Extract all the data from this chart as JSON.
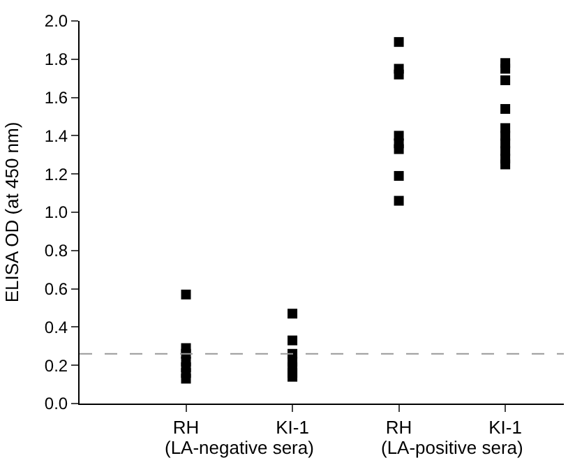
{
  "chart_data": {
    "type": "scatter",
    "ylabel": "ELISA OD (at 450 nm)",
    "categories": [
      "RH",
      "KI-1",
      "RH",
      "KI-1"
    ],
    "series": [
      {
        "color": "#000000",
        "values": [
          0.57,
          0.47,
          1.89,
          1.78
        ]
      },
      {
        "color": "#000000",
        "values": [
          0.29,
          0.33,
          1.75,
          1.75
        ]
      },
      {
        "color": "#000000",
        "values": [
          0.26,
          0.26,
          1.72,
          1.69
        ]
      },
      {
        "color": "#000000",
        "values": [
          0.22,
          0.22,
          1.4,
          1.54
        ]
      },
      {
        "color": "#000000",
        "values": [
          0.19,
          0.19,
          1.36,
          1.44
        ]
      },
      {
        "color": "#000000",
        "values": [
          0.16,
          0.16,
          1.33,
          1.4
        ]
      },
      {
        "color": "#000000",
        "values": [
          0.13,
          0.14,
          1.19,
          1.36
        ]
      },
      {
        "color": "#000000",
        "values": [
          null,
          null,
          1.06,
          1.32
        ]
      },
      {
        "color": "#000000",
        "values": [
          null,
          null,
          null,
          1.28
        ]
      },
      {
        "color": "#000000",
        "values": [
          null,
          null,
          null,
          1.25
        ]
      }
    ],
    "annotations": [
      "(LA-negative sera)",
      "(LA-positive sera)"
    ],
    "ylim": [
      0,
      2.0
    ],
    "yticks": [
      {
        "value": 0,
        "label": "0.0"
      },
      {
        "value": 0.2,
        "label": "0.2"
      },
      {
        "value": 0.4,
        "label": "0.4"
      },
      {
        "value": 0.6,
        "label": "0.6"
      },
      {
        "value": 0.8,
        "label": "0.8"
      },
      {
        "value": 1.0,
        "label": "1.0"
      },
      {
        "value": 1.2,
        "label": "1.2"
      },
      {
        "value": 1.4,
        "label": "1.4"
      },
      {
        "value": 1.6,
        "label": "1.6"
      },
      {
        "value": 1.8,
        "label": "1.8"
      },
      {
        "value": 2.0,
        "label": "2.0"
      }
    ],
    "ref_lines": [
      {
        "axis": "y",
        "value": 0.26,
        "color": "#999999",
        "line_style": "dashed"
      }
    ],
    "marker": "square"
  }
}
